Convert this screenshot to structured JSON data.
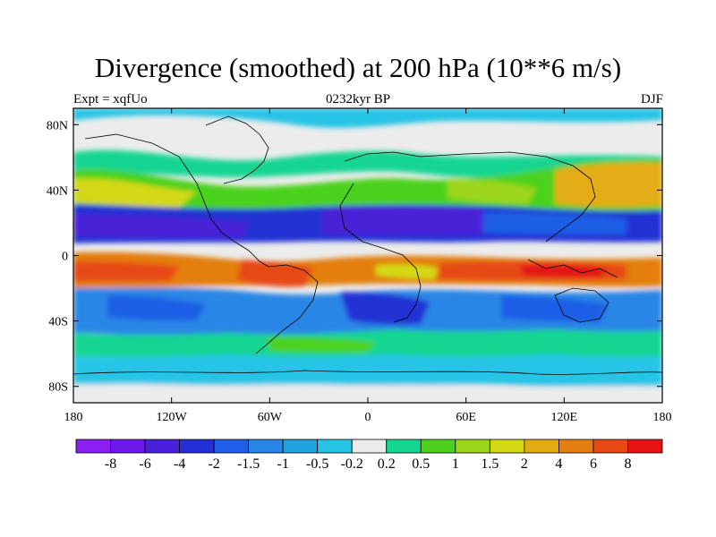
{
  "title": "Divergence (smoothed) at 200 hPa (10**6 m/s)",
  "subtitle_left": "Expt = xqfUo",
  "subtitle_center": "0232kyr BP",
  "subtitle_right": "DJF",
  "axes": {
    "y_ticks": [
      {
        "label": "80N",
        "value": 80
      },
      {
        "label": "40N",
        "value": 40
      },
      {
        "label": "0",
        "value": 0
      },
      {
        "label": "40S",
        "value": -40
      },
      {
        "label": "80S",
        "value": -80
      }
    ],
    "x_ticks": [
      {
        "label": "180",
        "value": -180
      },
      {
        "label": "120W",
        "value": -120
      },
      {
        "label": "60W",
        "value": -60
      },
      {
        "label": "0",
        "value": 0
      },
      {
        "label": "60E",
        "value": 60
      },
      {
        "label": "120E",
        "value": 120
      },
      {
        "label": "180",
        "value": 180
      }
    ],
    "lat_range": [
      -90,
      90
    ],
    "lon_range": [
      -180,
      180
    ]
  },
  "colorbar": {
    "colors": [
      "#8b1ff0",
      "#6d18e8",
      "#4a20d8",
      "#2430d4",
      "#1f5ee6",
      "#2a86e6",
      "#21a3e0",
      "#28c4e6",
      "#ececec",
      "#16d592",
      "#4cd21c",
      "#9bd61c",
      "#d4d816",
      "#e4ac14",
      "#e47e10",
      "#e64a12",
      "#e41414"
    ],
    "labels": [
      "-8",
      "-6",
      "-4",
      "-2",
      "-1.5",
      "-1",
      "-0.5",
      "-0.2",
      "0.2",
      "0.5",
      "1",
      "1.5",
      "2",
      "4",
      "6",
      "8"
    ]
  }
}
